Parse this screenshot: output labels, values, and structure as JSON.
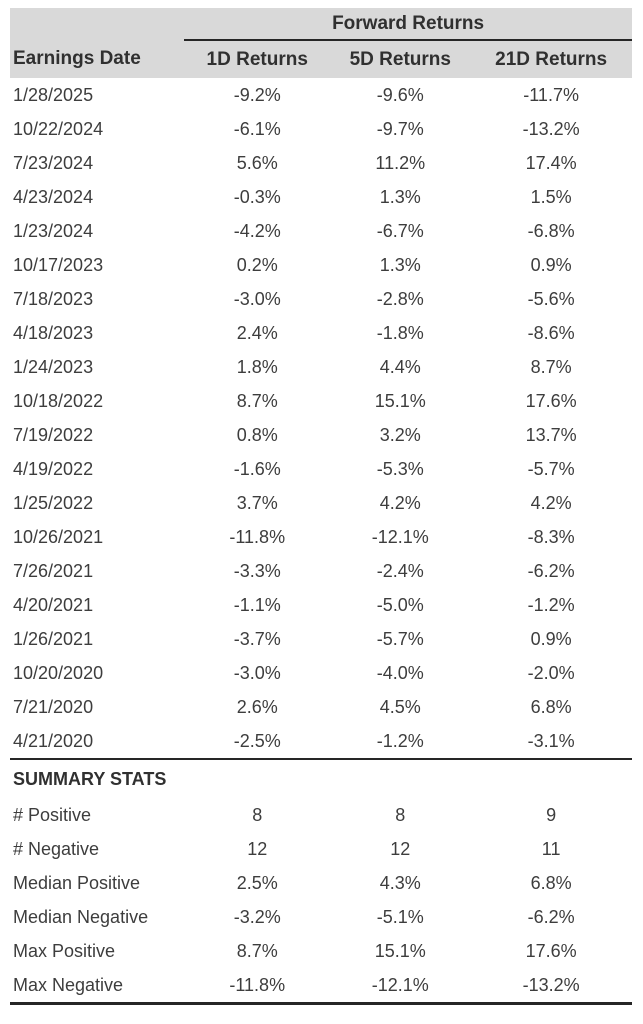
{
  "chart_data": {
    "type": "table",
    "group_header": "Forward Returns",
    "columns": [
      "Earnings Date",
      "1D Returns",
      "5D Returns",
      "21D Returns"
    ],
    "rows": [
      [
        "1/28/2025",
        "-9.2%",
        "-9.6%",
        "-11.7%"
      ],
      [
        "10/22/2024",
        "-6.1%",
        "-9.7%",
        "-13.2%"
      ],
      [
        "7/23/2024",
        "5.6%",
        "11.2%",
        "17.4%"
      ],
      [
        "4/23/2024",
        "-0.3%",
        "1.3%",
        "1.5%"
      ],
      [
        "1/23/2024",
        "-4.2%",
        "-6.7%",
        "-6.8%"
      ],
      [
        "10/17/2023",
        "0.2%",
        "1.3%",
        "0.9%"
      ],
      [
        "7/18/2023",
        "-3.0%",
        "-2.8%",
        "-5.6%"
      ],
      [
        "4/18/2023",
        "2.4%",
        "-1.8%",
        "-8.6%"
      ],
      [
        "1/24/2023",
        "1.8%",
        "4.4%",
        "8.7%"
      ],
      [
        "10/18/2022",
        "8.7%",
        "15.1%",
        "17.6%"
      ],
      [
        "7/19/2022",
        "0.8%",
        "3.2%",
        "13.7%"
      ],
      [
        "4/19/2022",
        "-1.6%",
        "-5.3%",
        "-5.7%"
      ],
      [
        "1/25/2022",
        "3.7%",
        "4.2%",
        "4.2%"
      ],
      [
        "10/26/2021",
        "-11.8%",
        "-12.1%",
        "-8.3%"
      ],
      [
        "7/26/2021",
        "-3.3%",
        "-2.4%",
        "-6.2%"
      ],
      [
        "4/20/2021",
        "-1.1%",
        "-5.0%",
        "-1.2%"
      ],
      [
        "1/26/2021",
        "-3.7%",
        "-5.7%",
        "0.9%"
      ],
      [
        "10/20/2020",
        "-3.0%",
        "-4.0%",
        "-2.0%"
      ],
      [
        "7/21/2020",
        "2.6%",
        "4.5%",
        "6.8%"
      ],
      [
        "4/21/2020",
        "-2.5%",
        "-1.2%",
        "-3.1%"
      ]
    ],
    "summary_title": "SUMMARY STATS",
    "summary_rows": [
      [
        "# Positive",
        "8",
        "8",
        "9"
      ],
      [
        "# Negative",
        "12",
        "12",
        "11"
      ],
      [
        "Median Positive",
        "2.5%",
        "4.3%",
        "6.8%"
      ],
      [
        "Median Negative",
        "-3.2%",
        "-5.1%",
        "-6.2%"
      ],
      [
        "Max Positive",
        "8.7%",
        "15.1%",
        "17.6%"
      ],
      [
        "Max Negative",
        "-11.8%",
        "-12.1%",
        "-13.2%"
      ]
    ]
  },
  "colors": {
    "header_bg": "#d9d9d9",
    "text": "#3d3d3d",
    "header_text": "#303030",
    "rule": "#262626",
    "background": "#ffffff"
  }
}
